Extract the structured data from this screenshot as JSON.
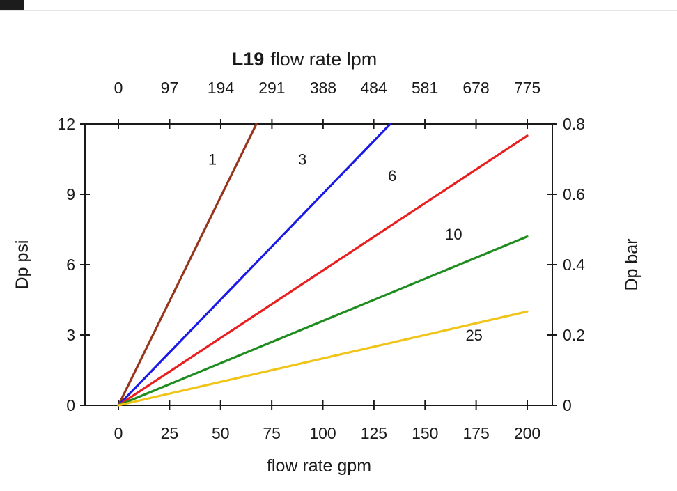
{
  "chart_data": {
    "type": "line",
    "title_bold": "L19",
    "title_rest": "flow rate lpm",
    "axes": {
      "top": {
        "ticks": [
          0,
          97,
          194,
          291,
          388,
          484,
          581,
          678,
          775
        ],
        "range": [
          0,
          775
        ]
      },
      "bottom": {
        "label": "flow rate gpm",
        "ticks": [
          0,
          25,
          50,
          75,
          100,
          125,
          150,
          175,
          200
        ],
        "range": [
          0,
          200
        ]
      },
      "left": {
        "label": "Dp psi",
        "ticks": [
          0,
          3,
          6,
          9,
          12
        ],
        "range": [
          0,
          12
        ]
      },
      "right": {
        "label": "Dp bar",
        "ticks": [
          0,
          0.2,
          0.4,
          0.6,
          0.8
        ],
        "range": [
          0,
          0.8
        ]
      }
    },
    "style": {
      "axis_color": "#1a1a1a",
      "text_color": "#1a1a1a"
    },
    "series": [
      {
        "name": "1",
        "color": "#96351c",
        "points": [
          [
            0,
            0
          ],
          [
            67.5,
            12
          ]
        ],
        "label_at": [
          46,
          10.5
        ]
      },
      {
        "name": "3",
        "color": "#1a1ae6",
        "points": [
          [
            0,
            0
          ],
          [
            133,
            12
          ]
        ],
        "label_at": [
          90,
          10.5
        ]
      },
      {
        "name": "6",
        "color": "#e81f1f",
        "points": [
          [
            0,
            0
          ],
          [
            200,
            11.5
          ]
        ],
        "label_at": [
          134,
          9.8
        ]
      },
      {
        "name": "10",
        "color": "#1e8c1e",
        "points": [
          [
            0,
            0
          ],
          [
            200,
            7.2
          ]
        ],
        "label_at": [
          164,
          7.3
        ]
      },
      {
        "name": "25",
        "color": "#f0c419",
        "points": [
          [
            0,
            0
          ],
          [
            200,
            4.0
          ]
        ],
        "label_at": [
          174,
          3.0
        ]
      }
    ]
  }
}
